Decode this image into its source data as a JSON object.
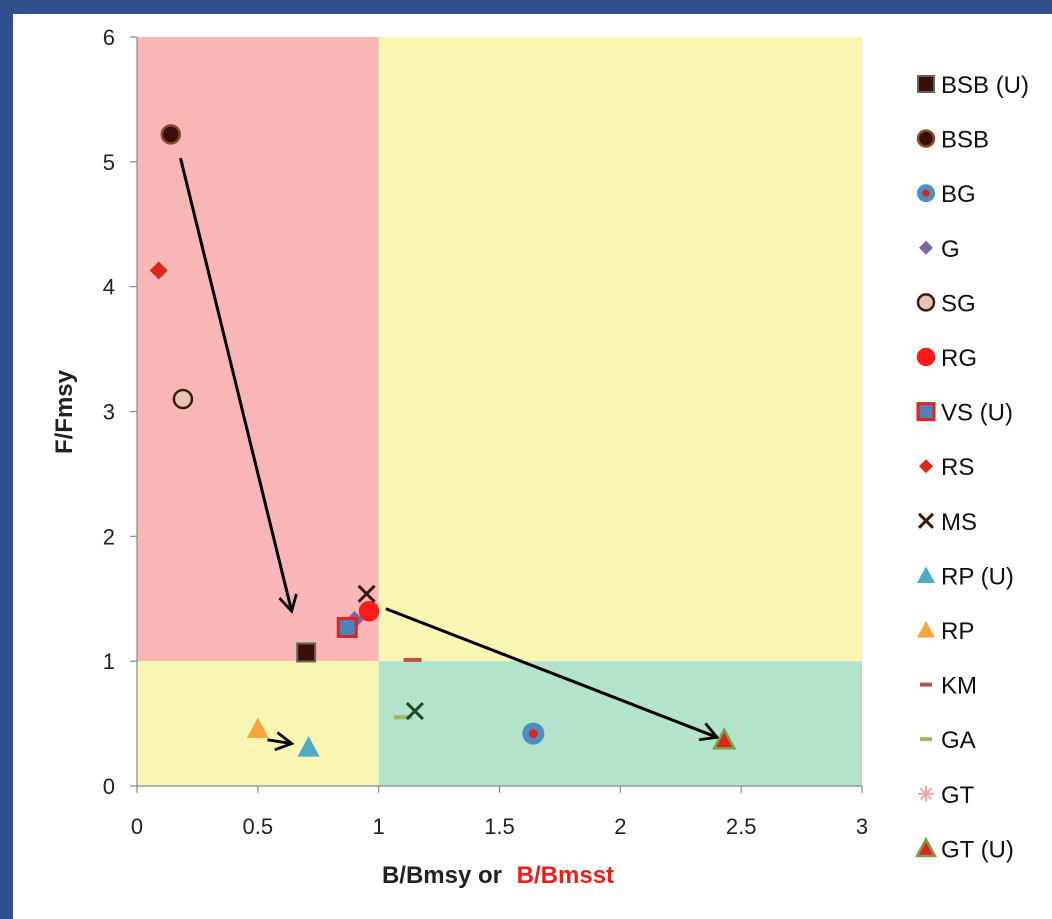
{
  "chart_data": {
    "type": "scatter",
    "title": "",
    "xlabel": "B/Bmsy or",
    "xlabel_highlight": "B/Bmsst",
    "xlabel_highlight_color": "#e8201a",
    "ylabel": "F/Fmsy",
    "xlim": [
      0,
      3
    ],
    "ylim": [
      0,
      6
    ],
    "x_ticks": [
      "0",
      "0.5",
      "1",
      "1.5",
      "2",
      "2.5",
      "3"
    ],
    "y_ticks": [
      "0",
      "1",
      "2",
      "3",
      "4",
      "5",
      "6"
    ],
    "grid": false,
    "legend_position": "right",
    "regions": [
      {
        "x": [
          0,
          1
        ],
        "y": [
          1,
          6
        ],
        "color": "#f8b6b6"
      },
      {
        "x": [
          1,
          3
        ],
        "y": [
          1,
          6
        ],
        "color": "#f8f6b2"
      },
      {
        "x": [
          0,
          1
        ],
        "y": [
          0,
          1
        ],
        "color": "#f8f6b2"
      },
      {
        "x": [
          1,
          3
        ],
        "y": [
          0,
          1
        ],
        "color": "#b4e3cc"
      }
    ],
    "series": [
      {
        "name": "BSB (U)",
        "marker": "square",
        "color": "#3a0f08",
        "edge": "#666666",
        "points": [
          [
            0.7,
            1.07
          ]
        ]
      },
      {
        "name": "BSB",
        "marker": "circle",
        "color": "#3a0f08",
        "edge": "#8a4a2a",
        "points": [
          [
            0.14,
            5.22
          ]
        ]
      },
      {
        "name": "BG",
        "marker": "circle-dot",
        "color": "#4f8ec0",
        "inner": "#e0231b",
        "points": [
          [
            1.64,
            0.42
          ]
        ]
      },
      {
        "name": "G",
        "marker": "diamond",
        "color": "#8064a2",
        "points": [
          [
            0.9,
            1.33
          ]
        ]
      },
      {
        "name": "SG",
        "marker": "circle",
        "color": "#e8c4b6",
        "edge": "#3a1f10",
        "points": [
          [
            0.19,
            3.1
          ]
        ]
      },
      {
        "name": "RG",
        "marker": "circle",
        "color": "#ff1a1a",
        "edge": "#ff1a1a",
        "points": [
          [
            0.96,
            1.4
          ]
        ]
      },
      {
        "name": "VS (U)",
        "marker": "square-outline",
        "color": "#4f81bd",
        "edge": "#e0231b",
        "points": [
          [
            0.87,
            1.27
          ]
        ]
      },
      {
        "name": "RS",
        "marker": "diamond",
        "color": "#e0231b",
        "points": [
          [
            0.09,
            4.13
          ]
        ]
      },
      {
        "name": "MS",
        "marker": "x",
        "color": "#3a1a10",
        "points": [
          [
            0.95,
            1.54
          ]
        ]
      },
      {
        "name": "RP (U)",
        "marker": "triangle",
        "color": "#4bacc6",
        "points": [
          [
            0.71,
            0.31
          ]
        ]
      },
      {
        "name": "RP",
        "marker": "triangle",
        "color": "#f7a43f",
        "points": [
          [
            0.5,
            0.46
          ]
        ]
      },
      {
        "name": "KM",
        "marker": "dash",
        "color": "#c0504d",
        "points": [
          [
            1.14,
            1.01
          ]
        ]
      },
      {
        "name": "GA",
        "marker": "dash",
        "color": "#9bbb59",
        "points": [
          [
            1.1,
            0.55
          ]
        ]
      },
      {
        "name": "GT",
        "marker": "star",
        "color": "#f2a0a0",
        "points": []
      },
      {
        "name": "GT (U)",
        "marker": "triangle-edge",
        "color": "#e0231b",
        "edge": "#7aa04a",
        "points": [
          [
            2.43,
            0.37
          ]
        ]
      }
    ],
    "extra_marks": [
      {
        "marker": "x",
        "color": "#1e4a2a",
        "points": [
          [
            1.15,
            0.6
          ]
        ]
      }
    ],
    "arrows": [
      {
        "from": [
          0.18,
          5.03
        ],
        "to": [
          0.64,
          1.4
        ]
      },
      {
        "from": [
          1.03,
          1.42
        ],
        "to": [
          2.4,
          0.39
        ]
      },
      {
        "from": [
          0.54,
          0.37
        ],
        "to": [
          0.64,
          0.34
        ]
      }
    ]
  }
}
